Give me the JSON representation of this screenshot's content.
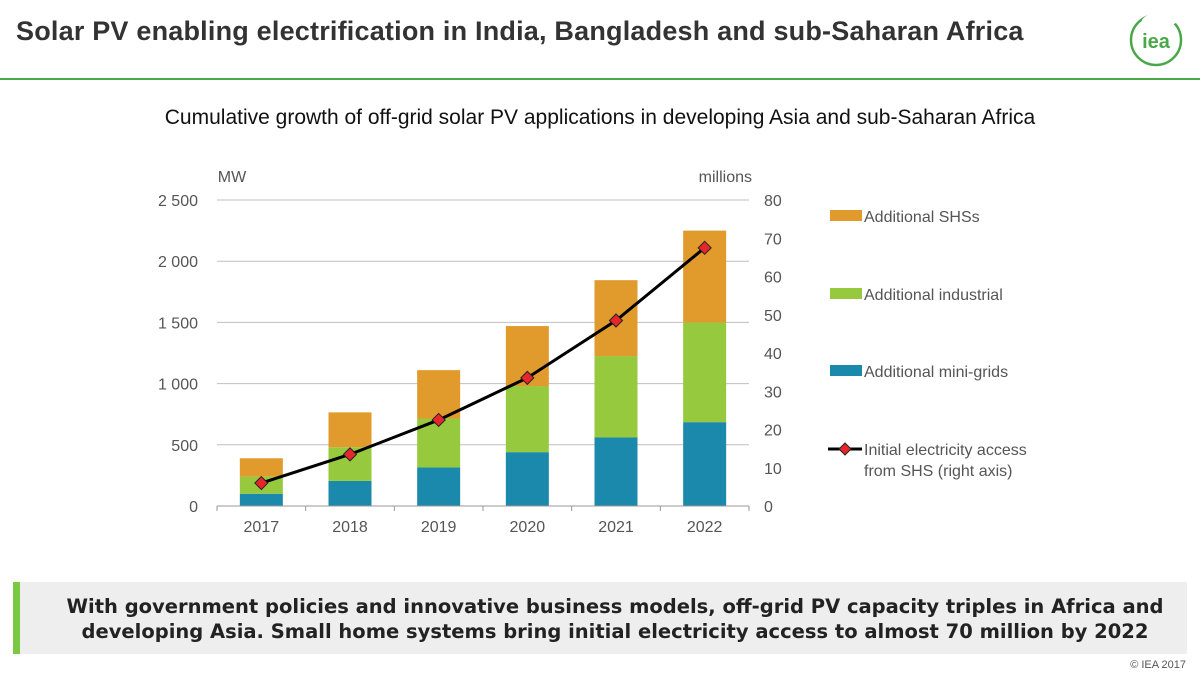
{
  "header": {
    "title": "Solar PV enabling electrification in India, Bangladesh and sub-Saharan Africa",
    "logo_text": "iea"
  },
  "colors": {
    "shs": "#E19A2C",
    "industrial": "#96C93D",
    "mini_grids": "#1B89AC",
    "line": "#000000",
    "marker": "#E6262B",
    "accent_green": "#4AA84A",
    "callout_bar": "#7AC943"
  },
  "chart_data": {
    "type": "bar",
    "stacked": true,
    "title": "Cumulative growth of off-grid solar PV applications in developing Asia and sub-Saharan Africa",
    "ylabel": "MW",
    "y2label": "millions",
    "ylim": [
      0,
      2500
    ],
    "y2lim": [
      0,
      80
    ],
    "yticks": [
      "0",
      "500",
      "1 000",
      "1 500",
      "2 000",
      "2 500"
    ],
    "y2ticks": [
      "0",
      "10",
      "20",
      "30",
      "40",
      "50",
      "60",
      "70",
      "80"
    ],
    "categories": [
      "2017",
      "2018",
      "2019",
      "2020",
      "2021",
      "2022"
    ],
    "series": [
      {
        "name": "Additional mini-grids",
        "key": "mini_grids",
        "values": [
          100,
          205,
          315,
          440,
          560,
          685
        ]
      },
      {
        "name": "Additional industrial",
        "key": "industrial",
        "values": [
          140,
          275,
          400,
          540,
          665,
          815
        ]
      },
      {
        "name": "Additional SHSs",
        "key": "shs",
        "values": [
          150,
          285,
          395,
          490,
          620,
          750
        ]
      }
    ],
    "line_series": {
      "name": "Initial electricity access from SHS (right axis)",
      "axis": "right",
      "values": [
        6,
        13.5,
        22.5,
        33.5,
        48.5,
        67.5
      ]
    },
    "legend": [
      {
        "label": "Additional SHSs",
        "key": "shs",
        "kind": "bar"
      },
      {
        "label": "Additional industrial",
        "key": "industrial",
        "kind": "bar"
      },
      {
        "label": "Additional mini-grids",
        "key": "mini_grids",
        "kind": "bar"
      },
      {
        "label_lines": [
          "Initial electricity access",
          "from SHS (right axis)"
        ],
        "key": "line",
        "kind": "line"
      }
    ],
    "legend_placement": "right",
    "grid": true
  },
  "callout": {
    "text": "With government policies and innovative business models, off-grid PV capacity triples in Africa and developing Asia. Small home systems bring initial electricity access to almost 70 million by 2022"
  },
  "footer": {
    "copyright": "© IEA 2017"
  }
}
